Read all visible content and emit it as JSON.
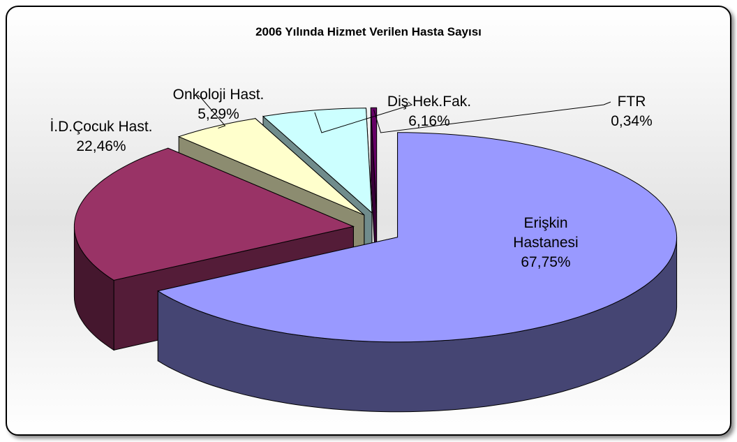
{
  "chart_data": {
    "type": "pie3d",
    "title": "2006 Yılında Hizmet Verilen Hasta Sayısı",
    "categories": [
      "Erişkin Hastanesi",
      "İ.D.Çocuk Hast.",
      "Onkoloji Hast.",
      "Diş Hek.Fak.",
      "FTR"
    ],
    "values": [
      67.75,
      22.46,
      5.29,
      6.16,
      0.34
    ],
    "value_labels": [
      "67,75%",
      "22,46%",
      "5,29%",
      "6,16%",
      "0,34%"
    ],
    "colors": [
      "#9999ff",
      "#993366",
      "#ffffcc",
      "#ccffff",
      "#660066"
    ]
  }
}
